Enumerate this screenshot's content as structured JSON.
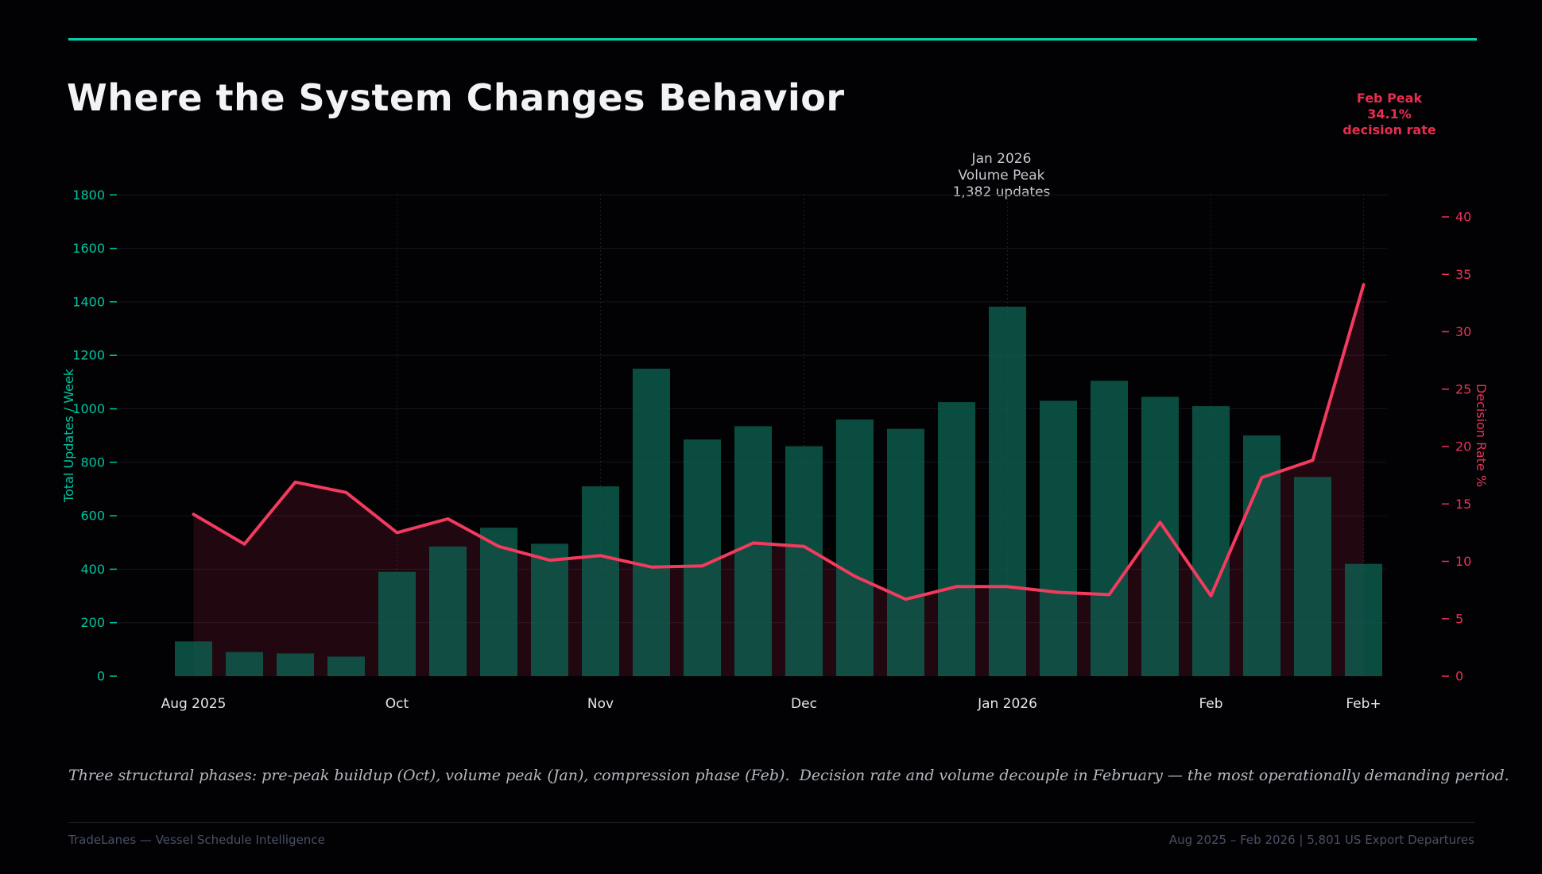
{
  "header": {
    "title": "Where the System Changes Behavior",
    "rule_color": "#00d2ad"
  },
  "annotations": {
    "feb_peak": {
      "lines": [
        "Feb Peak",
        "34.1%",
        "decision rate"
      ],
      "color": "#e62e50"
    },
    "jan_peak": {
      "lines": [
        "Jan 2026",
        "Volume Peak",
        "1,382 updates"
      ],
      "color": "#c6c9d1"
    }
  },
  "chart_data": {
    "type": "bar",
    "subtype": "dual-axis bar + line with area fill",
    "x": [
      1,
      2,
      3,
      4,
      5,
      6,
      7,
      8,
      9,
      10,
      11,
      12,
      13,
      14,
      15,
      16,
      17,
      18,
      19,
      20,
      21,
      22,
      23,
      24
    ],
    "x_tick_labels": [
      {
        "label": "Aug 2025",
        "index": 0
      },
      {
        "label": "Oct",
        "index": 4
      },
      {
        "label": "Nov",
        "index": 8
      },
      {
        "label": "Dec",
        "index": 12
      },
      {
        "label": "Jan 2026",
        "index": 16
      },
      {
        "label": "Feb",
        "index": 20
      },
      {
        "label": "Feb+",
        "index": 23
      }
    ],
    "series": [
      {
        "name": "Total Updates / Week",
        "type": "bar",
        "axis": "left",
        "color": "#0E5D4E",
        "opacity": 0.82,
        "values": [
          130,
          90,
          85,
          73,
          390,
          485,
          555,
          495,
          710,
          1150,
          885,
          935,
          860,
          960,
          925,
          1025,
          1382,
          1030,
          1105,
          1045,
          1010,
          900,
          745,
          420
        ]
      },
      {
        "name": "Decision Rate %",
        "type": "line",
        "axis": "right",
        "color": "#f23b5e",
        "area_color": "rgba(244,50,90,0.13)",
        "values": [
          14.1,
          11.5,
          16.9,
          16.0,
          12.5,
          13.7,
          11.3,
          10.1,
          10.5,
          9.5,
          9.6,
          11.6,
          11.3,
          8.7,
          6.7,
          7.8,
          7.8,
          7.3,
          7.1,
          13.4,
          7.0,
          17.3,
          18.8,
          34.1
        ]
      }
    ],
    "left_axis": {
      "label": "Total Updates / Week",
      "color": "#00c4a1",
      "min": 0,
      "max": 1800,
      "step": 200,
      "ticks": [
        "0",
        "200",
        "400",
        "600",
        "800",
        "1000",
        "1200",
        "1400",
        "1600",
        "1800"
      ]
    },
    "right_axis": {
      "label": "Decision Rate %",
      "color": "#e5345a",
      "min": 0,
      "max": 40,
      "step": 5,
      "ticks": [
        "0",
        "5",
        "10",
        "15",
        "20",
        "25",
        "30",
        "35",
        "40"
      ]
    },
    "grid": true,
    "legend_position": "none",
    "title": "Where the System Changes Behavior"
  },
  "footnote": "Three structural phases: pre-peak buildup (Oct), volume peak (Jan), compression phase (Feb).  Decision rate and volume decouple in February — the most operationally demanding period.",
  "footer": {
    "left": "TradeLanes — Vessel Schedule Intelligence",
    "right": "Aug 2025 – Feb 2026  |  5,801 US Export Departures"
  }
}
